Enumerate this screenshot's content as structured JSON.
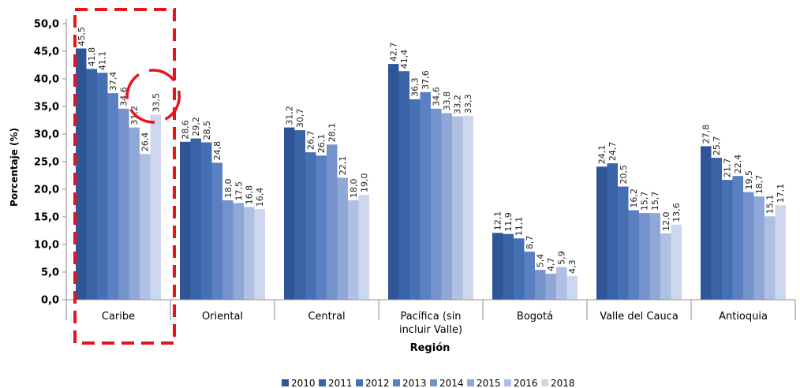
{
  "chart_data": {
    "type": "bar",
    "xlabel": "Región",
    "ylabel": "Porcentaje (%)",
    "ylim": [
      0,
      50
    ],
    "yticks": [
      "0,0",
      "5,0",
      "10,0",
      "15,0",
      "20,0",
      "25,0",
      "30,0",
      "35,0",
      "40,0",
      "45,0",
      "50,0"
    ],
    "categories": [
      "Caribe",
      "Oriental",
      "Central",
      "Pacífica (sin incluir Valle)",
      "Bogotá",
      "Valle del Cauca",
      "Antioquia"
    ],
    "category_lines": [
      [
        "Caribe"
      ],
      [
        "Oriental"
      ],
      [
        "Central"
      ],
      [
        "Pacífica (sin",
        "incluir Valle)"
      ],
      [
        "Bogotá"
      ],
      [
        "Valle del Cauca"
      ],
      [
        "Antioquia"
      ]
    ],
    "legend_position": "bottom",
    "grid": false,
    "series": [
      {
        "name": "2010",
        "color": "#2f5597",
        "values": [
          45.5,
          28.6,
          31.2,
          42.7,
          12.1,
          24.1,
          27.8
        ],
        "labels": [
          "45,5",
          "28,6",
          "31,2",
          "42,7",
          "12,1",
          "24,1",
          "27,8"
        ]
      },
      {
        "name": "2011",
        "color": "#3a62a6",
        "values": [
          41.8,
          29.2,
          30.7,
          41.4,
          11.9,
          24.7,
          25.7
        ],
        "labels": [
          "41,8",
          "29,2",
          "30,7",
          "41,4",
          "11,9",
          "24,7",
          "25,7"
        ]
      },
      {
        "name": "2012",
        "color": "#4570b4",
        "values": [
          41.1,
          28.5,
          26.7,
          36.3,
          11.1,
          20.5,
          21.7
        ],
        "labels": [
          "41,1",
          "28,5",
          "26,7",
          "36,3",
          "11,1",
          "20,5",
          "21,7"
        ]
      },
      {
        "name": "2013",
        "color": "#5a80c2",
        "values": [
          37.4,
          24.8,
          26.1,
          37.6,
          8.7,
          16.2,
          22.4
        ],
        "labels": [
          "37,4",
          "24,8",
          "26,1",
          "37,6",
          "8,7",
          "16,2",
          "22,4"
        ]
      },
      {
        "name": "2014",
        "color": "#7492cc",
        "values": [
          34.6,
          18.0,
          28.1,
          34.6,
          5.4,
          15.7,
          19.5
        ],
        "labels": [
          "34,6",
          "18,0",
          "28,1",
          "34,6",
          "5,4",
          "15,7",
          "19,5"
        ]
      },
      {
        "name": "2015",
        "color": "#90a8d7",
        "values": [
          31.2,
          17.5,
          22.1,
          33.8,
          4.7,
          15.7,
          18.7
        ],
        "labels": [
          "31,2",
          "17,5",
          "22,1",
          "33,8",
          "4,7",
          "15,7",
          "18,7"
        ]
      },
      {
        "name": "2016",
        "color": "#afc0e2",
        "values": [
          26.4,
          16.8,
          18.0,
          33.2,
          5.9,
          12.0,
          15.1
        ],
        "labels": [
          "26,4",
          "16,8",
          "18,0",
          "33,2",
          "5,9",
          "12,0",
          "15,1"
        ]
      },
      {
        "name": "2018",
        "color": "#cdd8ee",
        "values": [
          33.5,
          16.4,
          19.0,
          33.3,
          4.3,
          13.6,
          17.1
        ],
        "labels": [
          "33,5",
          "16,4",
          "19,0",
          "33,3",
          "4,3",
          "13,6",
          "17,1"
        ]
      }
    ],
    "annotations": [
      {
        "type": "dashed-rectangle",
        "color": "#e8141c",
        "target_category": "Caribe"
      },
      {
        "type": "dashed-circle",
        "color": "#e8141c",
        "target_category": "Caribe",
        "target_series": "2018"
      }
    ]
  }
}
